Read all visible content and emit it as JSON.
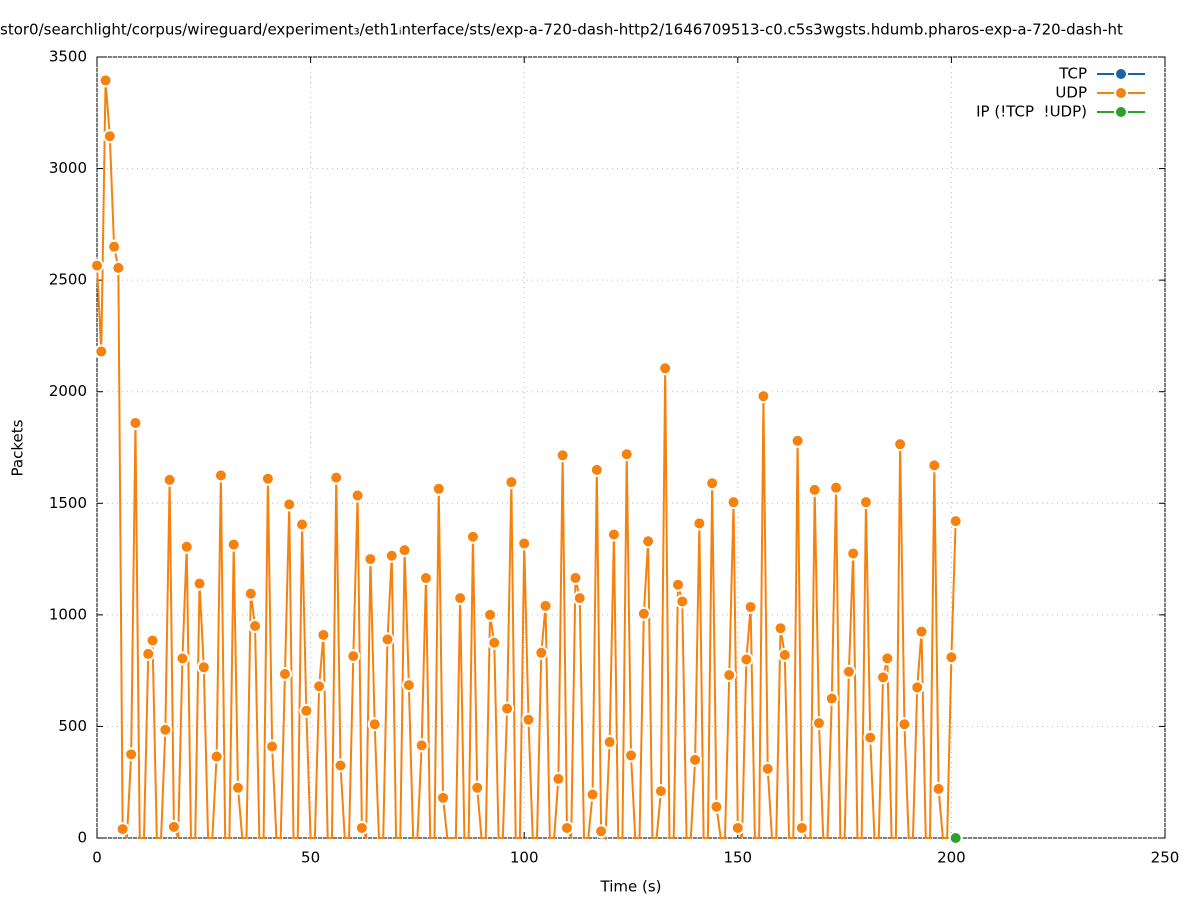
{
  "chart_data": {
    "type": "line",
    "title": "stor0/searchlight/corpus/wireguard/experiment₃/eth1ᵢnterface/sts/exp-a-720-dash-http2/1646709513-c0.c5s3wgsts.hdumb.pharos-exp-a-720-dash-ht",
    "xlabel": "Time (s)",
    "ylabel": "Packets",
    "xlim": [
      0,
      250
    ],
    "xticks": [
      0,
      50,
      100,
      150,
      200,
      250
    ],
    "ylim": [
      0,
      3500
    ],
    "yticks": [
      0,
      500,
      1000,
      1500,
      2000,
      2500,
      3000,
      3500
    ],
    "grid": true,
    "legend": "top-right",
    "series": [
      {
        "name": "TCP",
        "color": "#1a63a8",
        "x": [],
        "values": []
      },
      {
        "name": "UDP",
        "color": "#f5820f",
        "x": [
          0,
          1,
          2,
          3,
          4,
          5,
          6,
          7,
          8,
          9,
          10,
          11,
          12,
          13,
          14,
          15,
          16,
          17,
          18,
          19,
          20,
          21,
          22,
          23,
          24,
          25,
          26,
          27,
          28,
          29,
          30,
          31,
          32,
          33,
          34,
          35,
          36,
          37,
          38,
          39,
          40,
          41,
          42,
          43,
          44,
          45,
          46,
          47,
          48,
          49,
          50,
          51,
          52,
          53,
          54,
          55,
          56,
          57,
          58,
          59,
          60,
          61,
          62,
          63,
          64,
          65,
          66,
          67,
          68,
          69,
          70,
          71,
          72,
          73,
          74,
          75,
          76,
          77,
          78,
          79,
          80,
          81,
          82,
          83,
          84,
          85,
          86,
          87,
          88,
          89,
          90,
          91,
          92,
          93,
          94,
          95,
          96,
          97,
          98,
          99,
          100,
          101,
          102,
          103,
          104,
          105,
          106,
          107,
          108,
          109,
          110,
          111,
          112,
          113,
          114,
          115,
          116,
          117,
          118,
          119,
          120,
          121,
          122,
          123,
          124,
          125,
          126,
          127,
          128,
          129,
          130,
          131,
          132,
          133,
          134,
          135,
          136,
          137,
          138,
          139,
          140,
          141,
          142,
          143,
          144,
          145,
          146,
          147,
          148,
          149,
          150,
          151,
          152,
          153,
          154,
          155,
          156,
          157,
          158,
          159,
          160,
          161,
          162,
          163,
          164,
          165,
          166,
          167,
          168,
          169,
          170,
          171,
          172,
          173,
          174,
          175,
          176,
          177,
          178,
          179,
          180,
          181,
          182,
          183,
          184,
          185,
          186,
          187,
          188,
          189,
          190,
          191,
          192,
          193,
          194,
          195,
          196,
          197,
          198,
          199,
          200,
          201
        ],
        "values": [
          2565,
          2180,
          3395,
          3145,
          2650,
          2555,
          40,
          0,
          375,
          1860,
          0,
          0,
          825,
          885,
          0,
          0,
          485,
          1605,
          50,
          0,
          805,
          1305,
          0,
          0,
          1140,
          765,
          0,
          0,
          365,
          1625,
          0,
          0,
          1315,
          225,
          0,
          0,
          1095,
          950,
          0,
          0,
          1610,
          410,
          0,
          0,
          735,
          1495,
          0,
          0,
          1405,
          570,
          0,
          0,
          680,
          910,
          0,
          0,
          1615,
          325,
          0,
          0,
          815,
          1535,
          45,
          0,
          1250,
          510,
          0,
          0,
          890,
          1265,
          0,
          0,
          1290,
          685,
          0,
          0,
          415,
          1165,
          0,
          0,
          1565,
          180,
          0,
          0,
          0,
          1075,
          0,
          0,
          1350,
          225,
          0,
          0,
          1000,
          875,
          0,
          0,
          580,
          1595,
          0,
          0,
          1320,
          530,
          0,
          0,
          830,
          1040,
          0,
          0,
          265,
          1715,
          45,
          0,
          1165,
          1075,
          0,
          0,
          195,
          1650,
          30,
          0,
          430,
          1360,
          0,
          0,
          1720,
          370,
          0,
          0,
          1005,
          1330,
          0,
          0,
          210,
          2105,
          0,
          0,
          1135,
          1060,
          0,
          0,
          350,
          1410,
          0,
          0,
          1590,
          140,
          0,
          0,
          730,
          1505,
          45,
          0,
          800,
          1035,
          0,
          0,
          1980,
          310,
          0,
          0,
          940,
          820,
          0,
          0,
          1780,
          45,
          0,
          0,
          1560,
          515,
          0,
          0,
          625,
          1570,
          0,
          0,
          745,
          1275,
          0,
          0,
          1505,
          450,
          0,
          0,
          720,
          805,
          0,
          0,
          1765,
          510,
          0,
          0,
          675,
          925,
          0,
          0,
          1670,
          220,
          0,
          0,
          810,
          1420
        ]
      },
      {
        "name": "IP (!TCP  !UDP)",
        "color": "#2ca02c",
        "x": [
          201
        ],
        "values": [
          0
        ]
      }
    ]
  }
}
